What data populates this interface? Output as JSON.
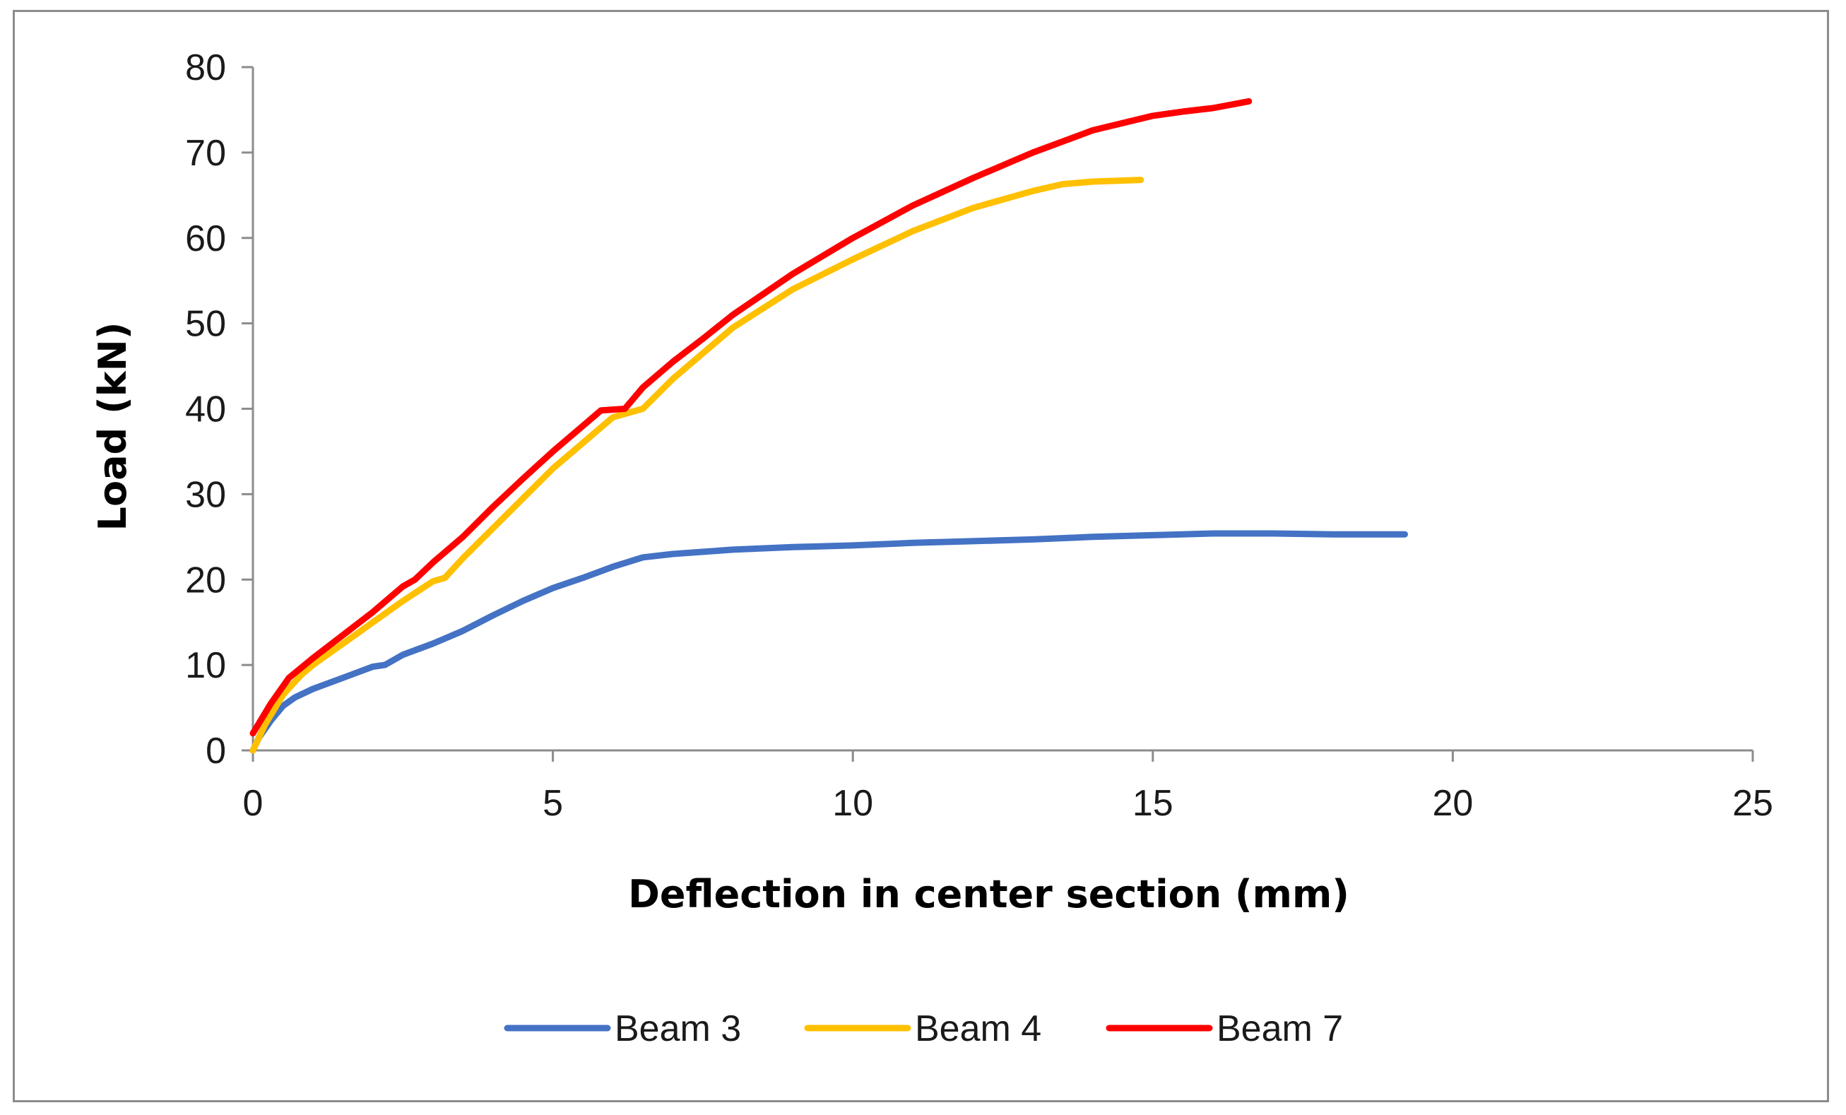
{
  "chart_data": {
    "type": "line",
    "title": "",
    "xlabel": "Deflection in center section (mm)",
    "ylabel": "Load (kN)",
    "xlim": [
      0,
      25
    ],
    "ylim": [
      0,
      80
    ],
    "x_ticks": [
      0,
      5,
      10,
      15,
      20,
      25
    ],
    "y_ticks": [
      0,
      10,
      20,
      30,
      40,
      50,
      60,
      70,
      80
    ],
    "x_tick_labels": [
      "0",
      "5",
      "10",
      "15",
      "20",
      "25"
    ],
    "y_tick_labels": [
      "0",
      "10",
      "20",
      "30",
      "40",
      "50",
      "60",
      "70",
      "80"
    ],
    "grid": false,
    "legend_position": "bottom",
    "series": [
      {
        "name": "Beam 3",
        "color": "#4472c4",
        "points": [
          [
            0,
            0
          ],
          [
            0.1,
            1.5
          ],
          [
            0.3,
            3.5
          ],
          [
            0.5,
            5.2
          ],
          [
            0.7,
            6.2
          ],
          [
            1.0,
            7.2
          ],
          [
            1.5,
            8.5
          ],
          [
            2.0,
            9.8
          ],
          [
            2.2,
            10.0
          ],
          [
            2.5,
            11.2
          ],
          [
            3.0,
            12.5
          ],
          [
            3.5,
            14.0
          ],
          [
            4.0,
            15.8
          ],
          [
            4.5,
            17.5
          ],
          [
            5.0,
            19.0
          ],
          [
            5.5,
            20.2
          ],
          [
            6.0,
            21.5
          ],
          [
            6.5,
            22.6
          ],
          [
            7.0,
            23.0
          ],
          [
            8.0,
            23.5
          ],
          [
            9.0,
            23.8
          ],
          [
            10.0,
            24.0
          ],
          [
            11.0,
            24.3
          ],
          [
            12.0,
            24.5
          ],
          [
            13.0,
            24.7
          ],
          [
            14.0,
            25.0
          ],
          [
            15.0,
            25.2
          ],
          [
            16.0,
            25.4
          ],
          [
            17.0,
            25.4
          ],
          [
            18.0,
            25.3
          ],
          [
            19.2,
            25.3
          ]
        ]
      },
      {
        "name": "Beam 4",
        "color": "#ffc000",
        "points": [
          [
            0,
            0
          ],
          [
            0.2,
            3.0
          ],
          [
            0.5,
            6.5
          ],
          [
            0.8,
            8.8
          ],
          [
            1.0,
            10.0
          ],
          [
            1.3,
            11.5
          ],
          [
            1.7,
            13.5
          ],
          [
            2.0,
            15.0
          ],
          [
            2.5,
            17.5
          ],
          [
            3.0,
            19.8
          ],
          [
            3.2,
            20.2
          ],
          [
            3.5,
            22.5
          ],
          [
            4.0,
            26.0
          ],
          [
            4.5,
            29.5
          ],
          [
            5.0,
            33.0
          ],
          [
            5.5,
            36.0
          ],
          [
            6.0,
            39.0
          ],
          [
            6.5,
            40.0
          ],
          [
            7.0,
            43.5
          ],
          [
            7.5,
            46.5
          ],
          [
            8.0,
            49.5
          ],
          [
            9.0,
            54.0
          ],
          [
            10.0,
            57.5
          ],
          [
            11.0,
            60.8
          ],
          [
            12.0,
            63.5
          ],
          [
            13.0,
            65.5
          ],
          [
            13.5,
            66.3
          ],
          [
            14.0,
            66.6
          ],
          [
            14.8,
            66.8
          ]
        ]
      },
      {
        "name": "Beam 7",
        "color": "#ff0000",
        "points": [
          [
            0,
            2.0
          ],
          [
            0.3,
            5.5
          ],
          [
            0.6,
            8.5
          ],
          [
            1.0,
            10.8
          ],
          [
            1.5,
            13.5
          ],
          [
            2.0,
            16.2
          ],
          [
            2.5,
            19.2
          ],
          [
            2.7,
            20.0
          ],
          [
            3.0,
            22.0
          ],
          [
            3.5,
            25.0
          ],
          [
            4.0,
            28.5
          ],
          [
            4.5,
            31.8
          ],
          [
            5.0,
            35.0
          ],
          [
            5.5,
            38.0
          ],
          [
            5.8,
            39.8
          ],
          [
            6.2,
            40.0
          ],
          [
            6.5,
            42.5
          ],
          [
            7.0,
            45.5
          ],
          [
            7.5,
            48.2
          ],
          [
            8.0,
            51.0
          ],
          [
            9.0,
            55.8
          ],
          [
            10.0,
            60.0
          ],
          [
            11.0,
            63.8
          ],
          [
            12.0,
            67.0
          ],
          [
            13.0,
            70.0
          ],
          [
            14.0,
            72.6
          ],
          [
            15.0,
            74.3
          ],
          [
            15.5,
            74.8
          ],
          [
            16.0,
            75.2
          ],
          [
            16.6,
            76.0
          ]
        ]
      }
    ]
  }
}
